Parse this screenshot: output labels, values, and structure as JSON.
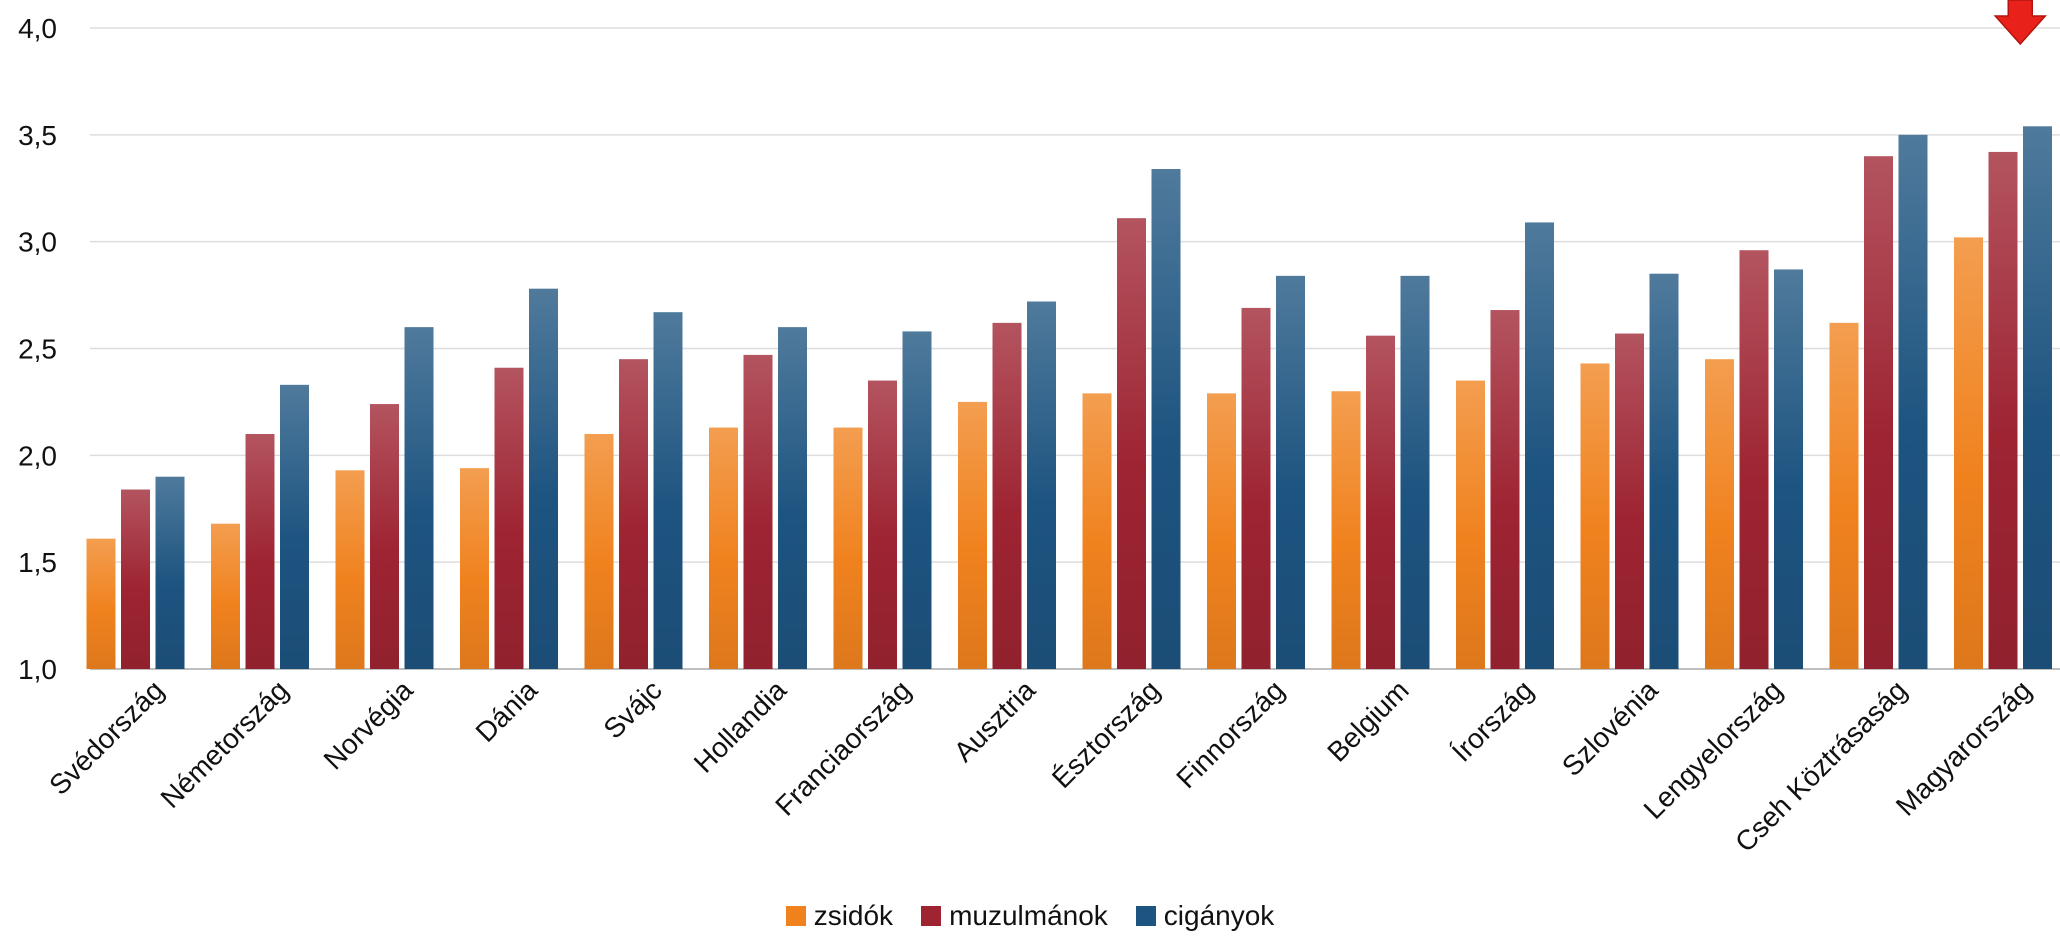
{
  "chart_data": {
    "type": "bar",
    "title": "",
    "xlabel": "",
    "ylabel": "",
    "ylim": [
      1.0,
      4.0
    ],
    "yticks": [
      "1,0",
      "1,5",
      "2,0",
      "2,5",
      "3,0",
      "3,5",
      "4,0"
    ],
    "ytick_values": [
      1.0,
      1.5,
      2.0,
      2.5,
      3.0,
      3.5,
      4.0
    ],
    "grid": "horizontal",
    "legend_position": "bottom",
    "categories": [
      "Svédország",
      "Németország",
      "Norvégia",
      "Dánia",
      "Svájc",
      "Hollandia",
      "Franciaország",
      "Ausztria",
      "Észtország",
      "Finnország",
      "Belgium",
      "Írország",
      "Szlovénia",
      "Lengyelország",
      "Cseh Köztrásaság",
      "Magyarország"
    ],
    "series": [
      {
        "name": "zsidók",
        "color": "#f0821e",
        "values": [
          1.61,
          1.68,
          1.93,
          1.94,
          2.1,
          2.13,
          2.13,
          2.25,
          2.29,
          2.29,
          2.3,
          2.35,
          2.43,
          2.45,
          2.62,
          3.02
        ]
      },
      {
        "name": "muzulmánok",
        "color": "#9e2432",
        "values": [
          1.84,
          2.1,
          2.24,
          2.41,
          2.45,
          2.47,
          2.35,
          2.62,
          3.11,
          2.69,
          2.56,
          2.68,
          2.57,
          2.96,
          3.4,
          3.42
        ]
      },
      {
        "name": "cigányok",
        "color": "#1d5480",
        "values": [
          1.9,
          2.33,
          2.6,
          2.78,
          2.67,
          2.6,
          2.58,
          2.72,
          3.34,
          2.84,
          2.84,
          3.09,
          2.85,
          2.87,
          3.5,
          3.54
        ]
      }
    ],
    "annotation": {
      "icon": "down-arrow-icon",
      "color": "#e8221a",
      "category": "Magyarország"
    }
  }
}
